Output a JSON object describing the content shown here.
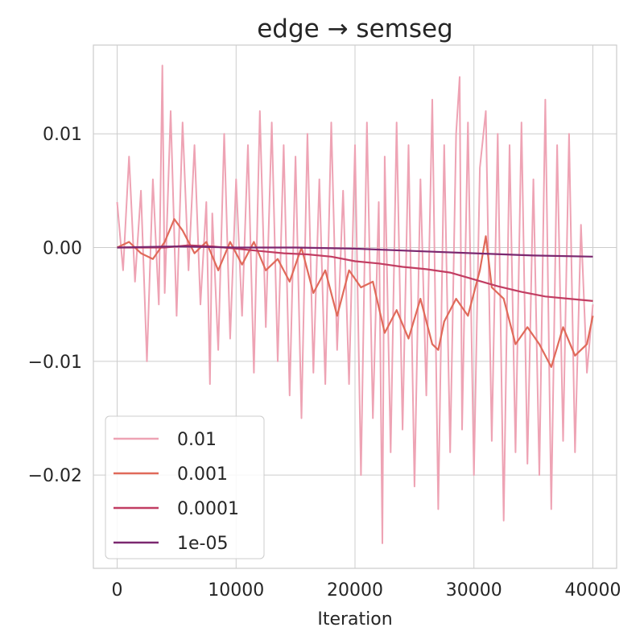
{
  "chart_data": {
    "type": "line",
    "title": "edge → semseg",
    "xlabel": "Iteration",
    "ylabel": "",
    "xlim": [
      -2000,
      42000
    ],
    "ylim": [
      -0.0282,
      0.0178
    ],
    "x_ticks": [
      {
        "value": 0,
        "label": "0"
      },
      {
        "value": 10000,
        "label": "10000"
      },
      {
        "value": 20000,
        "label": "20000"
      },
      {
        "value": 30000,
        "label": "30000"
      },
      {
        "value": 40000,
        "label": "40000"
      }
    ],
    "y_ticks": [
      {
        "value": 0.01,
        "label": "0.01"
      },
      {
        "value": 0.0,
        "label": "0.00"
      },
      {
        "value": -0.01,
        "label": "−0.01"
      },
      {
        "value": -0.02,
        "label": "−0.02"
      }
    ],
    "grid": true,
    "legend_position": "bottom-left",
    "series": [
      {
        "name": "0.01",
        "color": "#eea3b4",
        "x": [
          0,
          500,
          1000,
          1500,
          2000,
          2500,
          3000,
          3500,
          3800,
          4000,
          4500,
          5000,
          5500,
          6000,
          6500,
          7000,
          7500,
          7800,
          8000,
          8500,
          9000,
          9500,
          10000,
          10500,
          11000,
          11500,
          12000,
          12500,
          13000,
          13500,
          14000,
          14500,
          15000,
          15500,
          16000,
          16500,
          17000,
          17500,
          18000,
          18500,
          19000,
          19500,
          20000,
          20500,
          21000,
          21500,
          22000,
          22300,
          22500,
          23000,
          23500,
          24000,
          24500,
          25000,
          25500,
          26000,
          26500,
          27000,
          27500,
          28000,
          28500,
          28800,
          29000,
          29500,
          30000,
          30500,
          31000,
          31500,
          32000,
          32500,
          33000,
          33500,
          34000,
          34500,
          35000,
          35500,
          36000,
          36500,
          37000,
          37500,
          38000,
          38500,
          39000,
          39500,
          40000
        ],
        "y": [
          0.004,
          -0.002,
          0.008,
          -0.003,
          0.005,
          -0.01,
          0.006,
          -0.005,
          0.016,
          -0.004,
          0.012,
          -0.006,
          0.011,
          -0.002,
          0.009,
          -0.005,
          0.004,
          -0.012,
          0.003,
          -0.009,
          0.01,
          -0.008,
          0.006,
          -0.006,
          0.009,
          -0.011,
          0.012,
          -0.007,
          0.011,
          -0.01,
          0.009,
          -0.013,
          0.008,
          -0.015,
          0.01,
          -0.011,
          0.006,
          -0.012,
          0.011,
          -0.009,
          0.005,
          -0.012,
          0.009,
          -0.02,
          0.011,
          -0.015,
          0.004,
          -0.026,
          0.008,
          -0.018,
          0.011,
          -0.016,
          0.009,
          -0.021,
          0.006,
          -0.013,
          0.013,
          -0.023,
          0.009,
          -0.018,
          0.01,
          0.015,
          -0.016,
          0.011,
          -0.02,
          0.007,
          0.012,
          -0.017,
          0.01,
          -0.024,
          0.009,
          -0.018,
          0.011,
          -0.019,
          0.006,
          -0.02,
          0.013,
          -0.023,
          0.009,
          -0.017,
          0.01,
          -0.018,
          0.002,
          -0.011,
          -0.005
        ]
      },
      {
        "name": "0.001",
        "color": "#e06a5a",
        "x": [
          0,
          1000,
          2000,
          3000,
          4000,
          4800,
          5500,
          6500,
          7500,
          8500,
          9500,
          10500,
          11500,
          12500,
          13500,
          14500,
          15500,
          16500,
          17500,
          18500,
          19500,
          20500,
          21500,
          22500,
          23500,
          24500,
          25500,
          26500,
          27000,
          27500,
          28500,
          29500,
          30500,
          31000,
          31500,
          32500,
          33500,
          34500,
          35500,
          36500,
          37500,
          38500,
          39500,
          40000
        ],
        "y": [
          0.0,
          0.0005,
          -0.0005,
          -0.001,
          0.0005,
          0.0025,
          0.0015,
          -0.0005,
          0.0005,
          -0.002,
          0.0005,
          -0.0015,
          0.0005,
          -0.002,
          -0.001,
          -0.003,
          0.0,
          -0.004,
          -0.002,
          -0.006,
          -0.002,
          -0.0035,
          -0.003,
          -0.0075,
          -0.0055,
          -0.008,
          -0.0045,
          -0.0085,
          -0.009,
          -0.0065,
          -0.0045,
          -0.006,
          -0.002,
          0.001,
          -0.0035,
          -0.0045,
          -0.0085,
          -0.007,
          -0.0085,
          -0.0105,
          -0.007,
          -0.0095,
          -0.0085,
          -0.006
        ]
      },
      {
        "name": "0.0001",
        "color": "#c13d62",
        "x": [
          0,
          2000,
          4000,
          6000,
          8000,
          10000,
          12000,
          14000,
          16000,
          18000,
          20000,
          22000,
          24000,
          26000,
          28000,
          30000,
          32000,
          34000,
          36000,
          38000,
          40000
        ],
        "y": [
          0.0,
          0.0,
          0.0,
          0.0002,
          0.0001,
          -0.0001,
          -0.0003,
          -0.0005,
          -0.0006,
          -0.0008,
          -0.0012,
          -0.0014,
          -0.0017,
          -0.0019,
          -0.0022,
          -0.0028,
          -0.0034,
          -0.0039,
          -0.0043,
          -0.0045,
          -0.0047
        ]
      },
      {
        "name": "1e-05",
        "color": "#7b2870",
        "x": [
          0,
          5000,
          10000,
          15000,
          20000,
          25000,
          30000,
          35000,
          40000
        ],
        "y": [
          0.0,
          0.0001,
          0.0,
          0.0,
          -0.0001,
          -0.0003,
          -0.0005,
          -0.0007,
          -0.0008
        ]
      }
    ]
  }
}
